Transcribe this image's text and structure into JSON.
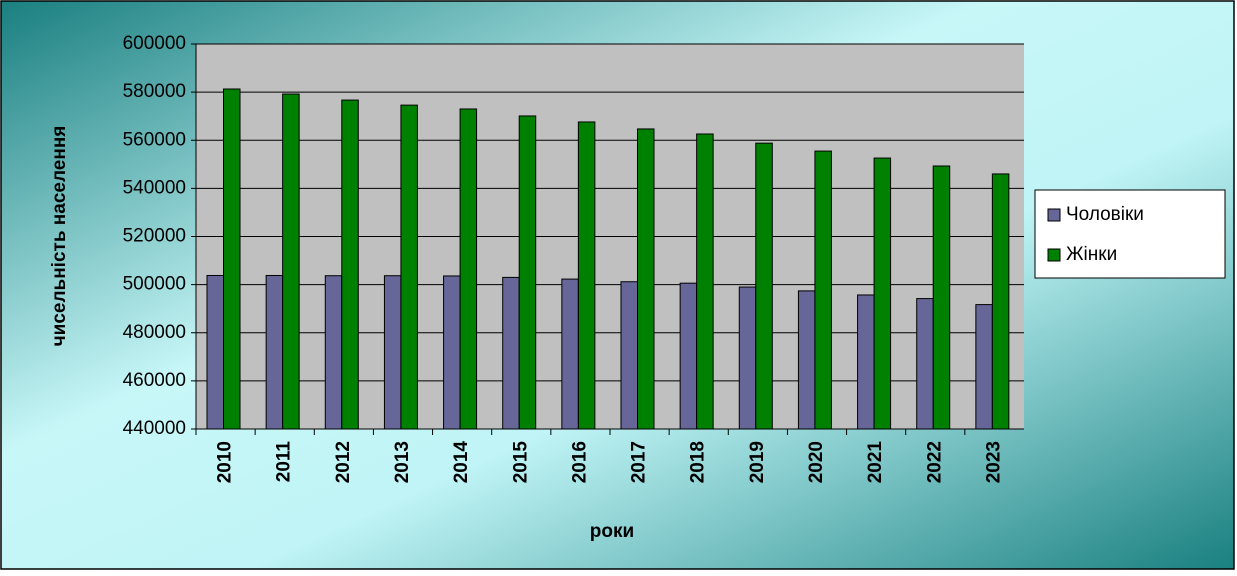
{
  "chart_data": {
    "type": "bar",
    "categories": [
      "2010",
      "2011",
      "2012",
      "2013",
      "2014",
      "2015",
      "2016",
      "2017",
      "2018",
      "2019",
      "2020",
      "2021",
      "2022",
      "2023"
    ],
    "series": [
      {
        "name": "Чоловіки",
        "color": "#666699",
        "values": [
          503800,
          503800,
          503700,
          503700,
          503600,
          503000,
          502300,
          501200,
          500600,
          499000,
          497400,
          495700,
          494200,
          491700
        ]
      },
      {
        "name": "Жінки",
        "color": "#008000",
        "values": [
          581300,
          579200,
          576700,
          574600,
          573000,
          570100,
          567600,
          564700,
          562600,
          558800,
          555500,
          552600,
          549300,
          546000
        ]
      }
    ],
    "x_label": "роки",
    "y_label": "чисельність населення",
    "ylim": [
      440000,
      600000
    ],
    "yticks": [
      440000,
      460000,
      480000,
      500000,
      520000,
      540000,
      560000,
      580000,
      600000
    ],
    "grid": true,
    "legend": "right"
  }
}
